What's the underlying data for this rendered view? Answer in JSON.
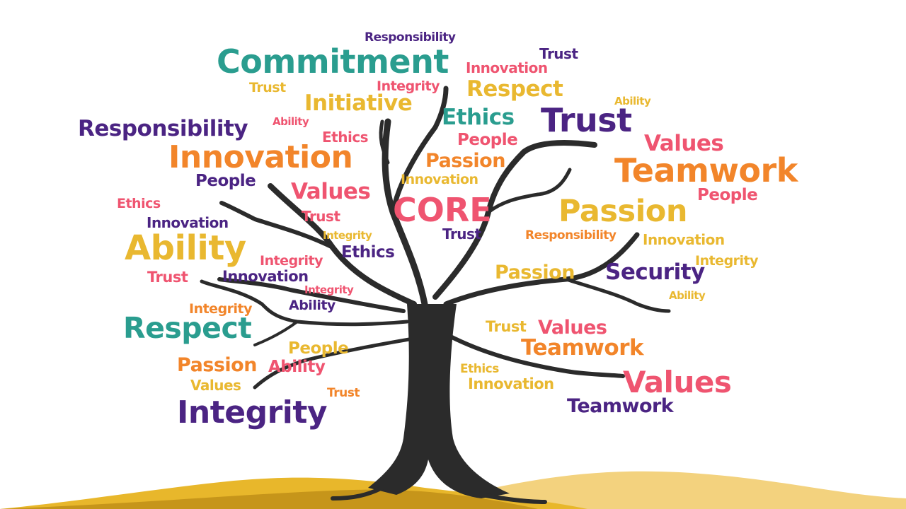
{
  "colors": {
    "teal": "#2a9d8f",
    "purple": "#4b2483",
    "pink": "#ef5470",
    "orange": "#f2852a",
    "yellow": "#e9b830",
    "tree": "#2b2b2b",
    "ground_dark": "#c6951a",
    "ground_mid": "#e8b72b",
    "ground_light": "#f3d27e"
  },
  "words": [
    "Responsibility",
    "Commitment",
    "Trust",
    "Innovation",
    "Trust",
    "Integrity",
    "Respect",
    "Initiative",
    "Ability",
    "Responsibility",
    "Ability",
    "Ethics",
    "Ethics",
    "Trust",
    "People",
    "Values",
    "Innovation",
    "Passion",
    "Teamwork",
    "People",
    "Innovation",
    "People",
    "Values",
    "CORE",
    "Passion",
    "Ethics",
    "Trust",
    "Innovation",
    "Integrity",
    "Trust",
    "Responsibility",
    "Innovation",
    "Ability",
    "Integrity",
    "Ethics",
    "Integrity",
    "Passion",
    "Security",
    "Trust",
    "Innovation",
    "Ability",
    "Integrity",
    "Ability",
    "Integrity",
    "Respect",
    "Trust",
    "Values",
    "People",
    "Teamwork",
    "Passion",
    "Ability",
    "Ethics",
    "Values",
    "Values",
    "Innovation",
    "Trust",
    "Teamwork",
    "Integrity"
  ]
}
